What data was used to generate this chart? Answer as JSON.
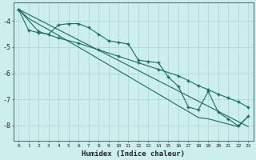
{
  "xlabel": "Humidex (Indice chaleur)",
  "bg_color": "#cceeed",
  "grid_color": "#b0d8d6",
  "line_color": "#1a6b63",
  "xlim": [
    -0.5,
    23.5
  ],
  "ylim": [
    -8.6,
    -3.3
  ],
  "yticks": [
    -8,
    -7,
    -6,
    -5,
    -4
  ],
  "xticks": [
    0,
    1,
    2,
    3,
    4,
    5,
    6,
    7,
    8,
    9,
    10,
    11,
    12,
    13,
    14,
    15,
    16,
    17,
    18,
    19,
    20,
    21,
    22,
    23
  ],
  "line1_x": [
    0,
    1,
    2,
    3,
    4,
    5,
    6,
    7,
    8,
    9,
    10,
    11,
    12,
    13,
    14,
    15,
    16,
    17,
    18,
    19,
    20,
    21,
    22,
    23
  ],
  "line1_y": [
    -3.55,
    -4.35,
    -4.45,
    -4.5,
    -4.15,
    -4.1,
    -4.1,
    -4.25,
    -4.5,
    -4.75,
    -4.82,
    -4.88,
    -5.5,
    -5.55,
    -5.6,
    -6.15,
    -6.5,
    -7.3,
    -7.4,
    -6.7,
    -7.5,
    -7.75,
    -8.02,
    -7.65
  ],
  "line2_x": [
    0,
    2,
    4,
    6,
    8,
    10,
    12,
    14,
    16,
    17,
    18,
    19,
    20,
    21,
    22,
    23
  ],
  "line2_y": [
    -3.55,
    -4.4,
    -4.65,
    -4.85,
    -5.1,
    -5.35,
    -5.6,
    -5.85,
    -6.1,
    -6.28,
    -6.48,
    -6.63,
    -6.8,
    -6.95,
    -7.1,
    -7.3
  ],
  "line3_x": [
    0,
    23
  ],
  "line3_y": [
    -3.55,
    -8.05
  ],
  "line4_x": [
    0,
    1,
    2,
    3,
    4,
    5,
    6,
    7,
    8,
    9,
    10,
    11,
    12,
    13,
    14,
    15,
    16,
    17,
    18,
    19,
    20,
    21,
    22,
    23
  ],
  "line4_y": [
    -3.55,
    -3.9,
    -4.12,
    -4.33,
    -4.55,
    -4.78,
    -5.0,
    -5.22,
    -5.45,
    -5.67,
    -5.9,
    -6.12,
    -6.35,
    -6.57,
    -6.8,
    -7.02,
    -7.25,
    -7.47,
    -7.7,
    -7.75,
    -7.85,
    -7.95,
    -8.05,
    -7.65
  ]
}
